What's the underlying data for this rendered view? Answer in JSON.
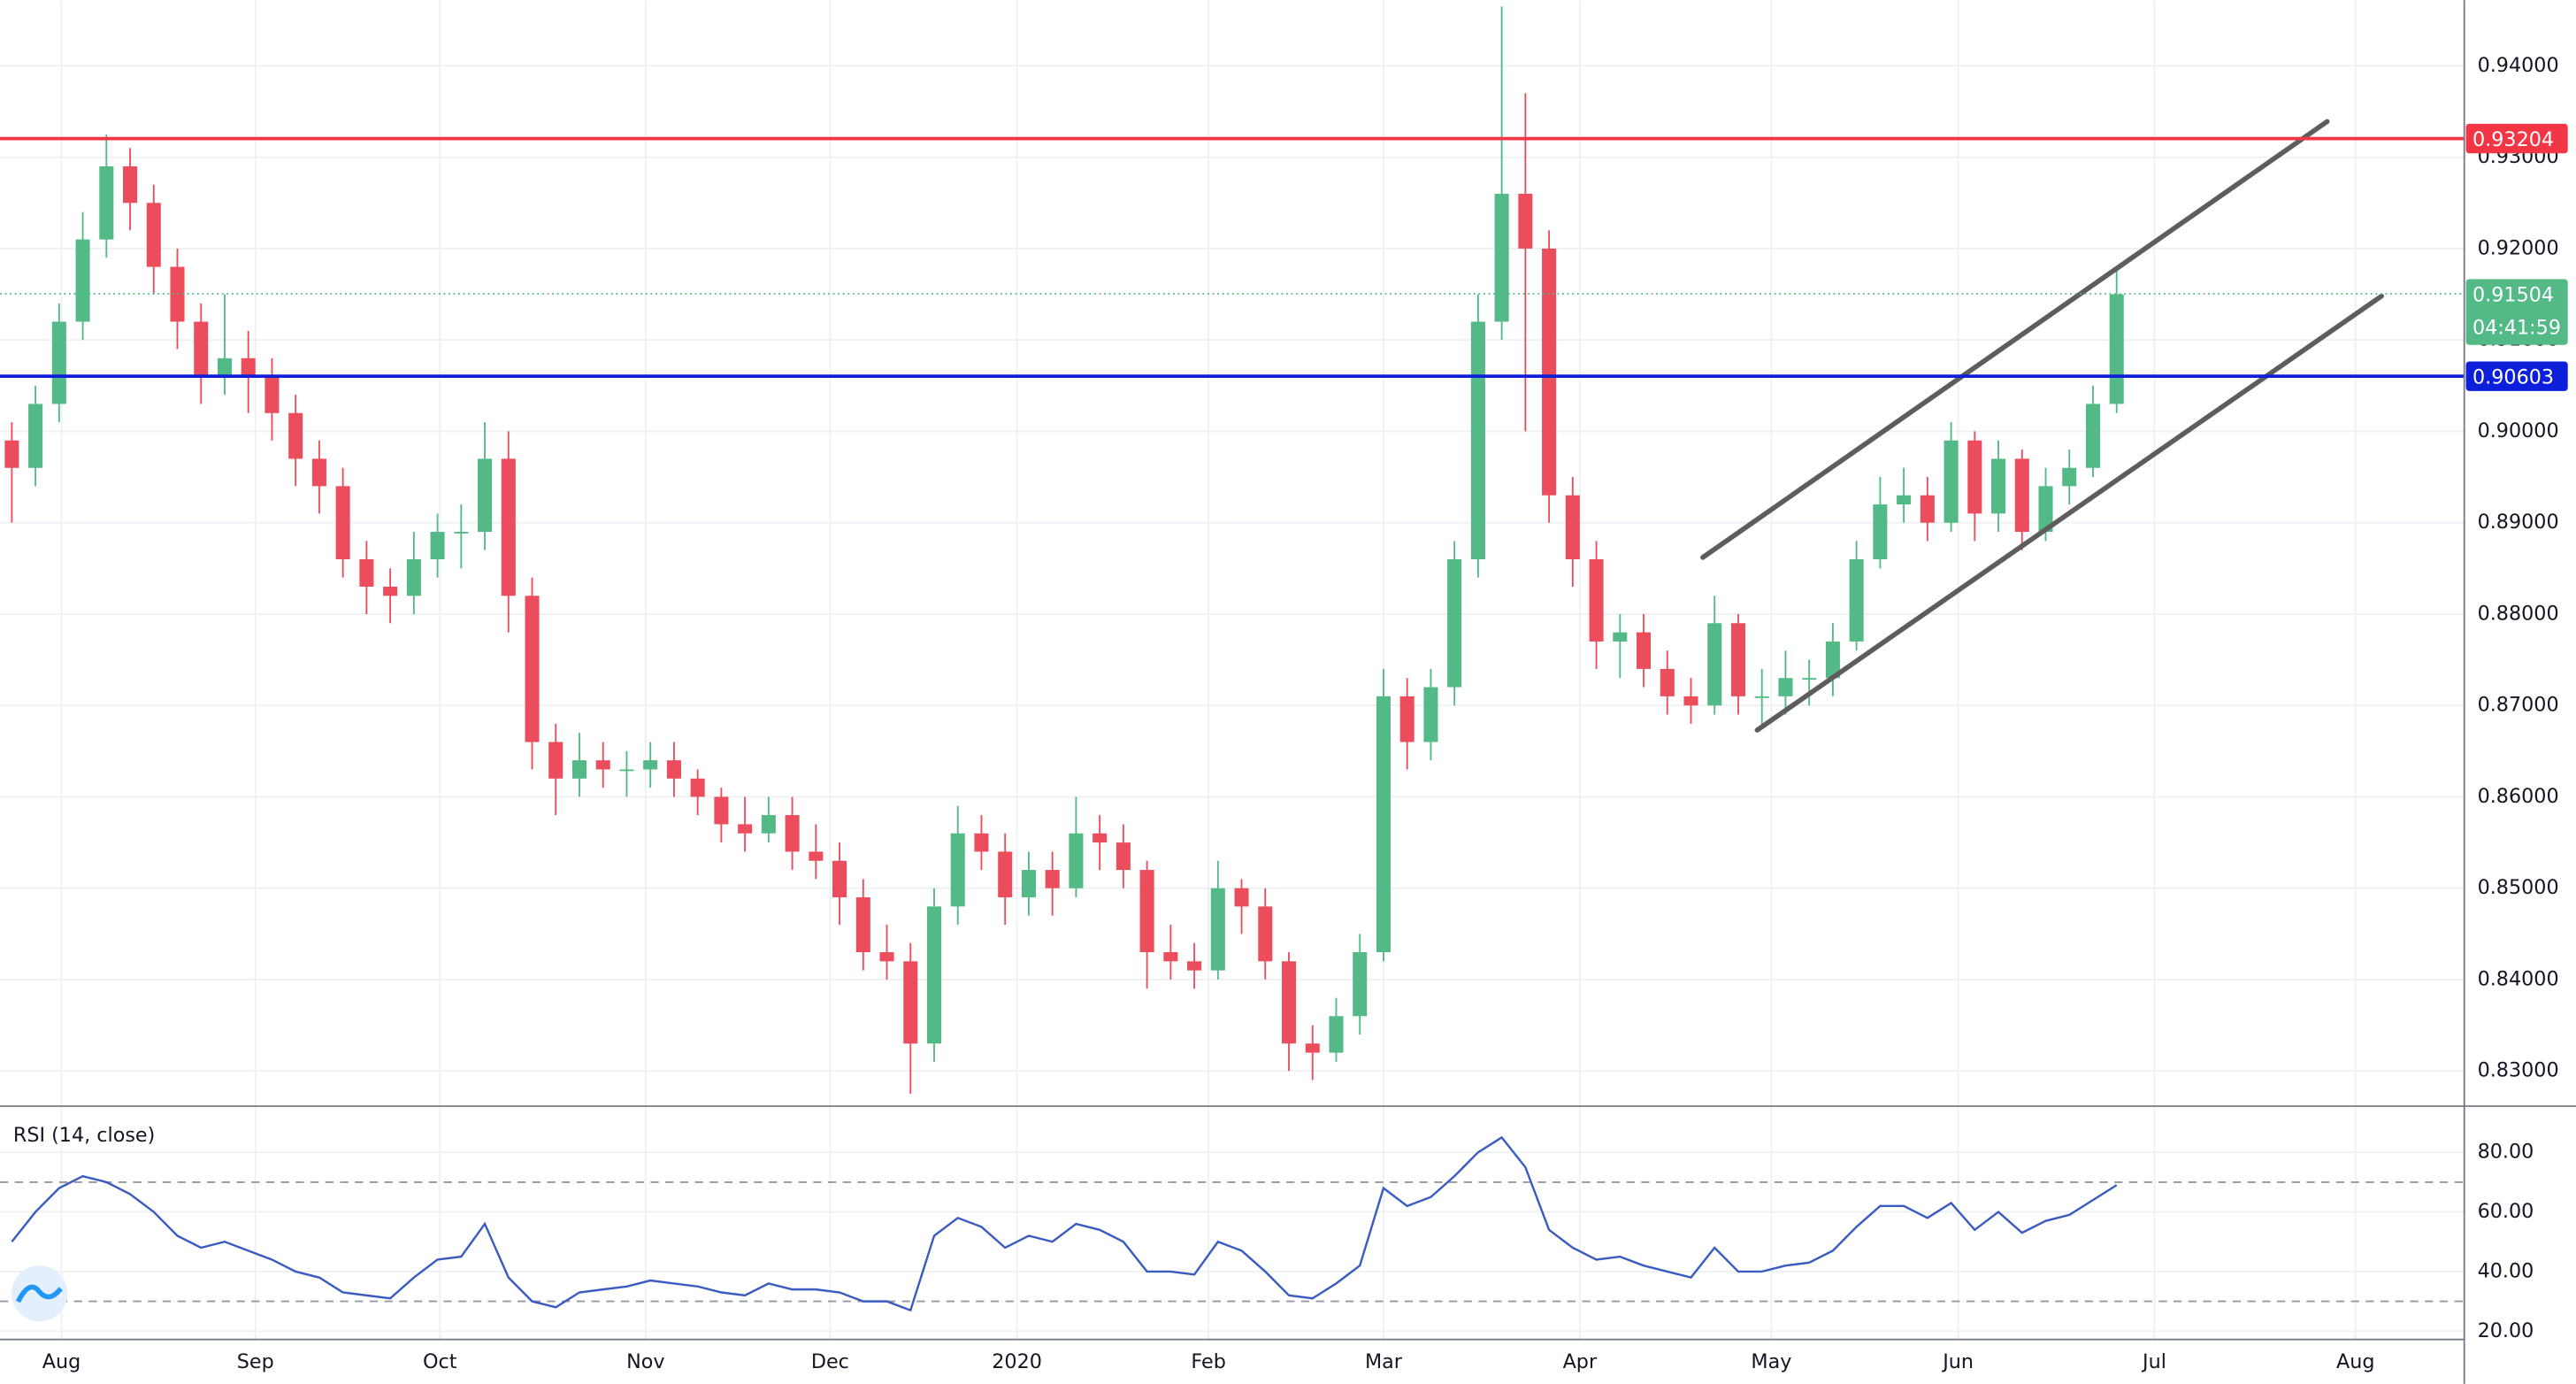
{
  "chart_data": [
    {
      "type": "candlestick",
      "up_color": "#53b987",
      "down_color": "#eb4d5c",
      "candles": [
        [
          0.899,
          0.901,
          0.89,
          0.896
        ],
        [
          0.896,
          0.905,
          0.894,
          0.903
        ],
        [
          0.903,
          0.914,
          0.901,
          0.912
        ],
        [
          0.912,
          0.924,
          0.91,
          0.921
        ],
        [
          0.921,
          0.9325,
          0.919,
          0.929
        ],
        [
          0.929,
          0.931,
          0.922,
          0.925
        ],
        [
          0.925,
          0.927,
          0.915,
          0.918
        ],
        [
          0.918,
          0.92,
          0.909,
          0.912
        ],
        [
          0.912,
          0.914,
          0.903,
          0.906
        ],
        [
          0.906,
          0.915,
          0.904,
          0.908
        ],
        [
          0.908,
          0.911,
          0.902,
          0.906
        ],
        [
          0.906,
          0.908,
          0.899,
          0.902
        ],
        [
          0.902,
          0.904,
          0.894,
          0.897
        ],
        [
          0.897,
          0.899,
          0.891,
          0.894
        ],
        [
          0.894,
          0.896,
          0.884,
          0.886
        ],
        [
          0.886,
          0.888,
          0.88,
          0.883
        ],
        [
          0.883,
          0.885,
          0.879,
          0.882
        ],
        [
          0.882,
          0.889,
          0.88,
          0.886
        ],
        [
          0.886,
          0.891,
          0.884,
          0.889
        ],
        [
          0.889,
          0.892,
          0.885,
          0.889
        ],
        [
          0.889,
          0.901,
          0.887,
          0.897
        ],
        [
          0.897,
          0.9,
          0.878,
          0.882
        ],
        [
          0.882,
          0.884,
          0.863,
          0.866
        ],
        [
          0.866,
          0.868,
          0.858,
          0.862
        ],
        [
          0.862,
          0.867,
          0.86,
          0.864
        ],
        [
          0.864,
          0.866,
          0.861,
          0.863
        ],
        [
          0.863,
          0.865,
          0.86,
          0.863
        ],
        [
          0.863,
          0.866,
          0.861,
          0.864
        ],
        [
          0.864,
          0.866,
          0.86,
          0.862
        ],
        [
          0.862,
          0.863,
          0.858,
          0.86
        ],
        [
          0.86,
          0.861,
          0.855,
          0.857
        ],
        [
          0.857,
          0.86,
          0.854,
          0.856
        ],
        [
          0.856,
          0.86,
          0.855,
          0.858
        ],
        [
          0.858,
          0.86,
          0.852,
          0.854
        ],
        [
          0.854,
          0.857,
          0.851,
          0.853
        ],
        [
          0.853,
          0.855,
          0.846,
          0.849
        ],
        [
          0.849,
          0.851,
          0.841,
          0.843
        ],
        [
          0.843,
          0.846,
          0.84,
          0.842
        ],
        [
          0.842,
          0.844,
          0.8275,
          0.833
        ],
        [
          0.833,
          0.85,
          0.831,
          0.848
        ],
        [
          0.848,
          0.859,
          0.846,
          0.856
        ],
        [
          0.856,
          0.858,
          0.852,
          0.854
        ],
        [
          0.854,
          0.856,
          0.846,
          0.849
        ],
        [
          0.849,
          0.854,
          0.847,
          0.852
        ],
        [
          0.852,
          0.854,
          0.847,
          0.85
        ],
        [
          0.85,
          0.86,
          0.849,
          0.856
        ],
        [
          0.856,
          0.858,
          0.852,
          0.855
        ],
        [
          0.855,
          0.857,
          0.85,
          0.852
        ],
        [
          0.852,
          0.853,
          0.839,
          0.843
        ],
        [
          0.843,
          0.846,
          0.84,
          0.842
        ],
        [
          0.842,
          0.844,
          0.839,
          0.841
        ],
        [
          0.841,
          0.853,
          0.84,
          0.85
        ],
        [
          0.85,
          0.851,
          0.845,
          0.848
        ],
        [
          0.848,
          0.85,
          0.84,
          0.842
        ],
        [
          0.842,
          0.843,
          0.83,
          0.833
        ],
        [
          0.833,
          0.835,
          0.829,
          0.832
        ],
        [
          0.832,
          0.838,
          0.831,
          0.836
        ],
        [
          0.836,
          0.845,
          0.834,
          0.843
        ],
        [
          0.843,
          0.874,
          0.842,
          0.871
        ],
        [
          0.871,
          0.873,
          0.863,
          0.866
        ],
        [
          0.866,
          0.874,
          0.864,
          0.872
        ],
        [
          0.872,
          0.888,
          0.87,
          0.886
        ],
        [
          0.886,
          0.915,
          0.884,
          0.912
        ],
        [
          0.912,
          0.9465,
          0.91,
          0.926
        ],
        [
          0.926,
          0.937,
          0.9,
          0.92
        ],
        [
          0.92,
          0.922,
          0.89,
          0.893
        ],
        [
          0.893,
          0.895,
          0.883,
          0.886
        ],
        [
          0.886,
          0.888,
          0.874,
          0.877
        ],
        [
          0.877,
          0.88,
          0.873,
          0.878
        ],
        [
          0.878,
          0.88,
          0.872,
          0.874
        ],
        [
          0.874,
          0.876,
          0.869,
          0.871
        ],
        [
          0.871,
          0.873,
          0.868,
          0.87
        ],
        [
          0.87,
          0.882,
          0.869,
          0.879
        ],
        [
          0.879,
          0.88,
          0.869,
          0.871
        ],
        [
          0.871,
          0.874,
          0.868,
          0.871
        ],
        [
          0.871,
          0.876,
          0.869,
          0.873
        ],
        [
          0.873,
          0.875,
          0.87,
          0.873
        ],
        [
          0.873,
          0.879,
          0.871,
          0.877
        ],
        [
          0.877,
          0.888,
          0.876,
          0.886
        ],
        [
          0.886,
          0.895,
          0.885,
          0.892
        ],
        [
          0.892,
          0.896,
          0.89,
          0.893
        ],
        [
          0.893,
          0.895,
          0.888,
          0.89
        ],
        [
          0.89,
          0.901,
          0.889,
          0.899
        ],
        [
          0.899,
          0.9,
          0.888,
          0.891
        ],
        [
          0.891,
          0.899,
          0.889,
          0.897
        ],
        [
          0.897,
          0.898,
          0.887,
          0.889
        ],
        [
          0.889,
          0.896,
          0.888,
          0.894
        ],
        [
          0.894,
          0.898,
          0.892,
          0.896
        ],
        [
          0.896,
          0.905,
          0.895,
          0.903
        ],
        [
          0.903,
          0.918,
          0.902,
          0.915
        ]
      ],
      "xlim": [
        -0.5,
        103.7
      ],
      "xticks": [
        {
          "value": 2.1,
          "label": "Aug"
        },
        {
          "value": 10.3,
          "label": "Sep"
        },
        {
          "value": 18.1,
          "label": "Oct"
        },
        {
          "value": 26.8,
          "label": "Nov"
        },
        {
          "value": 34.6,
          "label": "Dec"
        },
        {
          "value": 42.5,
          "label": "2020"
        },
        {
          "value": 50.6,
          "label": "Feb"
        },
        {
          "value": 58.0,
          "label": "Mar"
        },
        {
          "value": 66.3,
          "label": "Apr"
        },
        {
          "value": 74.4,
          "label": "May"
        },
        {
          "value": 82.3,
          "label": "Jun"
        },
        {
          "value": 90.6,
          "label": "Jul"
        },
        {
          "value": 99.1,
          "label": "Aug"
        }
      ],
      "ylim": [
        0.82615,
        0.94719
      ],
      "yticks": [
        {
          "value": 0.83,
          "label": "0.83000"
        },
        {
          "value": 0.84,
          "label": "0.84000"
        },
        {
          "value": 0.85,
          "label": "0.85000"
        },
        {
          "value": 0.86,
          "label": "0.86000"
        },
        {
          "value": 0.87,
          "label": "0.87000"
        },
        {
          "value": 0.88,
          "label": "0.88000"
        },
        {
          "value": 0.89,
          "label": "0.89000"
        },
        {
          "value": 0.9,
          "label": "0.90000"
        },
        {
          "value": 0.91,
          "label": "0.91000"
        },
        {
          "value": 0.92,
          "label": "0.92000"
        },
        {
          "value": 0.93,
          "label": "0.93000"
        },
        {
          "value": 0.94,
          "label": "0.94000"
        }
      ],
      "grid": true,
      "levels": [
        {
          "value": 0.93204,
          "color": "#f23645"
        },
        {
          "value": 0.90603,
          "color": "#0d1fdb"
        }
      ],
      "last_price": {
        "value": 0.91504,
        "countdown": "04:41:59",
        "color": "#53b987"
      },
      "trendlines": [
        {
          "x": [
            71.5,
            97.9
          ],
          "y": [
            0.8862,
            0.9339
          ],
          "color": "#5d5d5d"
        },
        {
          "x": [
            73.8,
            100.2
          ],
          "y": [
            0.8673,
            0.9148
          ],
          "color": "#5d5d5d"
        }
      ]
    },
    {
      "type": "line",
      "title": "RSI (14, close)",
      "color": "#3a5bbf",
      "values": [
        50,
        60,
        68,
        72,
        70,
        66,
        60,
        52,
        48,
        50,
        47,
        44,
        40,
        38,
        33,
        32,
        31,
        38,
        44,
        45,
        56,
        38,
        30,
        28,
        33,
        34,
        35,
        37,
        36,
        35,
        33,
        32,
        36,
        34,
        34,
        33,
        30,
        30,
        27,
        52,
        58,
        55,
        48,
        52,
        50,
        56,
        54,
        50,
        40,
        40,
        39,
        50,
        47,
        40,
        32,
        31,
        36,
        42,
        68,
        62,
        65,
        72,
        80,
        85,
        75,
        54,
        48,
        44,
        45,
        42,
        40,
        38,
        48,
        40,
        40,
        42,
        43,
        47,
        55,
        62,
        62,
        58,
        63,
        54,
        60,
        53,
        57,
        59,
        64,
        69
      ],
      "ylim": [
        17.2,
        94.4
      ],
      "yticks": [
        {
          "value": 20,
          "label": "20.00"
        },
        {
          "value": 40,
          "label": "40.00"
        },
        {
          "value": 60,
          "label": "60.00"
        },
        {
          "value": 80,
          "label": "80.00"
        }
      ],
      "levels": [
        70,
        30
      ]
    }
  ]
}
